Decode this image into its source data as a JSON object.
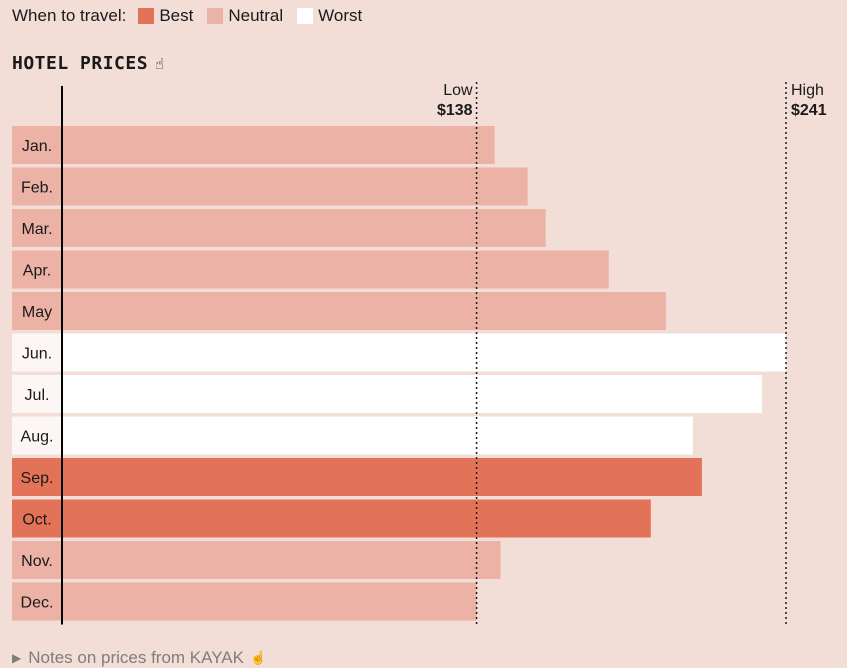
{
  "legend": {
    "title": "When to travel:",
    "items": [
      {
        "label": "Best",
        "color": "#e37358"
      },
      {
        "label": "Neutral",
        "color": "#ebb2a5"
      },
      {
        "label": "Worst",
        "color": "#ffffff"
      }
    ]
  },
  "section_title": "HOTEL PRICES",
  "footer": {
    "label": "Notes on prices from KAYAK"
  },
  "icons": {
    "title_hint": "hand-pointer-icon",
    "footer_toggle": "triangle-right-icon",
    "footer_hint": "hand-pointer-icon"
  },
  "chart_data": {
    "type": "bar",
    "orientation": "horizontal",
    "categories": [
      "Jan.",
      "Feb.",
      "Mar.",
      "Apr.",
      "May",
      "Jun.",
      "Jul.",
      "Aug.",
      "Sep.",
      "Oct.",
      "Nov.",
      "Dec."
    ],
    "values": [
      144,
      155,
      161,
      182,
      201,
      241,
      233,
      210,
      213,
      196,
      146,
      138
    ],
    "status": [
      "Neutral",
      "Neutral",
      "Neutral",
      "Neutral",
      "Neutral",
      "Worst",
      "Worst",
      "Worst",
      "Best",
      "Best",
      "Neutral",
      "Neutral"
    ],
    "colors": {
      "Best": "#e37358",
      "Neutral": "#ebb2a5",
      "Worst": "#ffffff"
    },
    "reference_lines": [
      {
        "label": "Low",
        "value_label": "$138",
        "value": 138
      },
      {
        "label": "High",
        "value_label": "$241",
        "value": 241
      }
    ],
    "xlim": [
      0,
      241
    ]
  }
}
